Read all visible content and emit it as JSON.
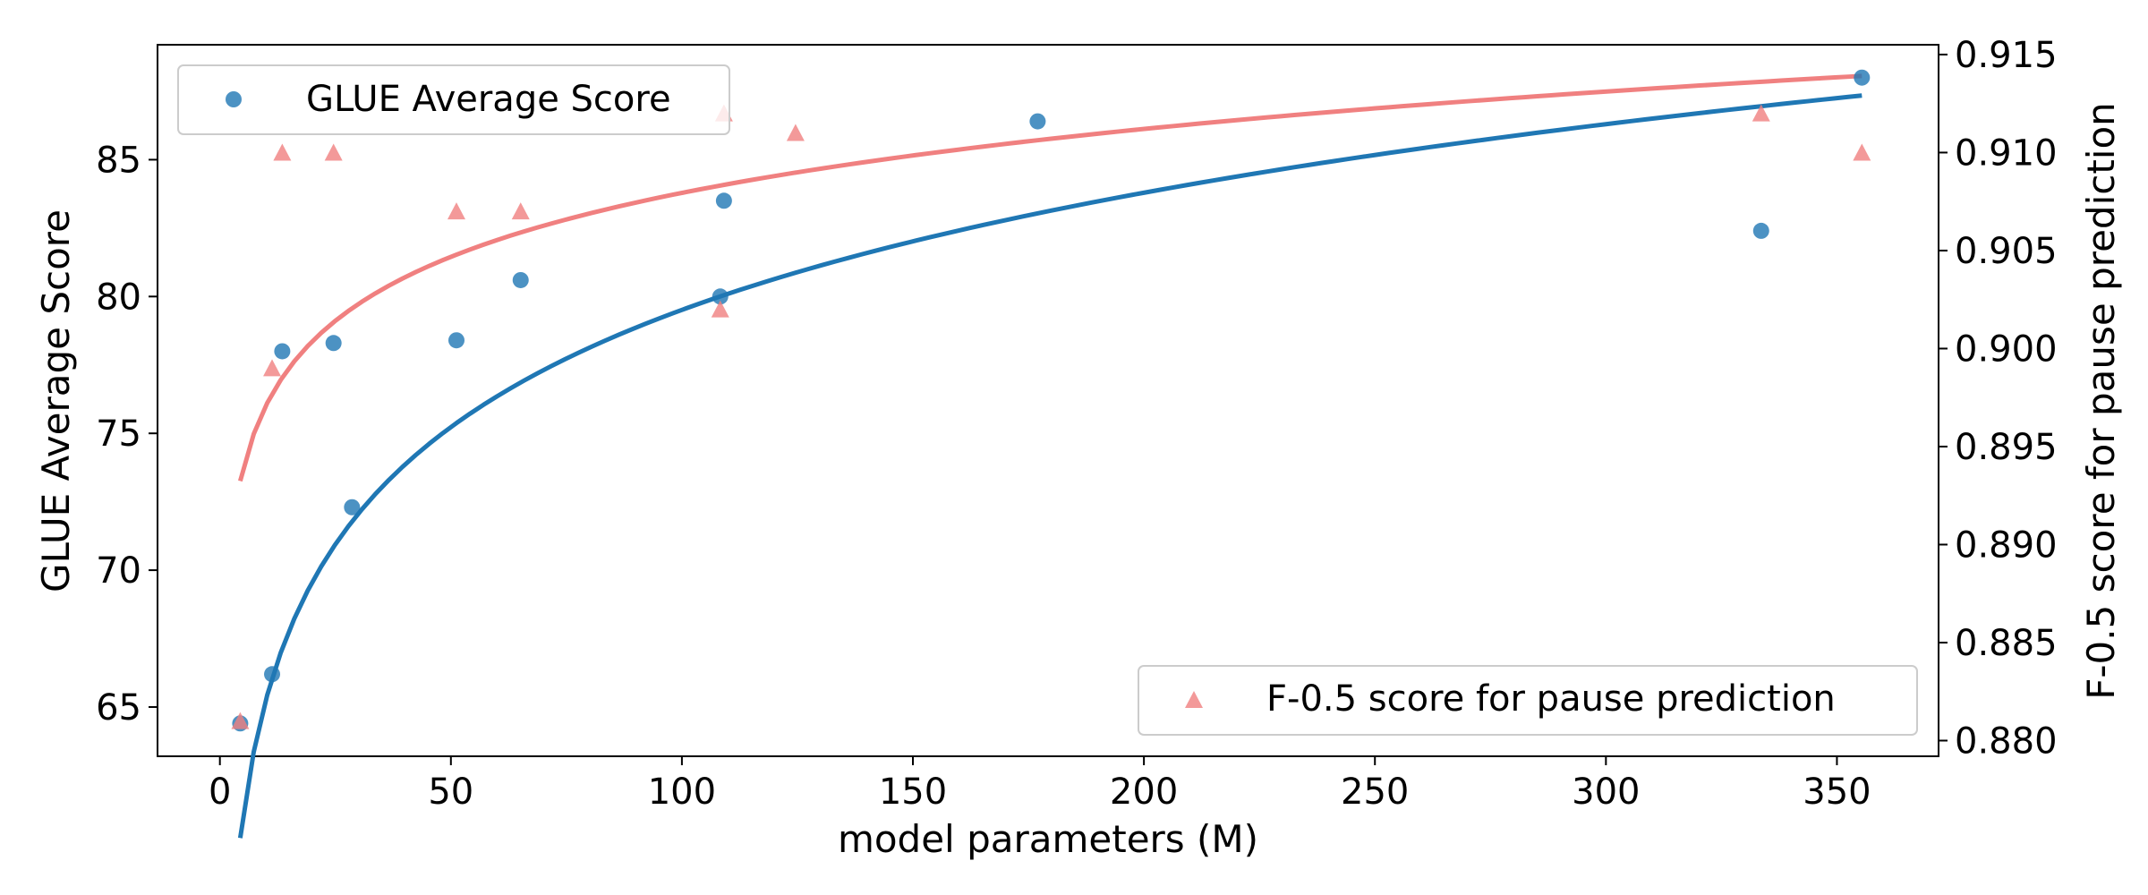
{
  "chart_data": {
    "type": "scatter",
    "xlabel": "model parameters (M)",
    "ylabel_left": "GLUE Average Score",
    "ylabel_right": "F-0.5 score for pause prediction",
    "xlim": [
      -13.5,
      372
    ],
    "ylim_left": [
      63.2,
      89.2
    ],
    "ylim_right": [
      0.8792,
      0.9155
    ],
    "x_ticks": [
      0,
      50,
      100,
      150,
      200,
      250,
      300,
      350
    ],
    "y_left_ticks": [
      65,
      70,
      75,
      80,
      85
    ],
    "y_right_ticks": [
      0.88,
      0.885,
      0.89,
      0.895,
      0.9,
      0.905,
      0.91,
      0.915
    ],
    "y_right_tick_labels": [
      "0.880",
      "0.885",
      "0.890",
      "0.895",
      "0.900",
      "0.905",
      "0.910",
      "0.915"
    ],
    "grid": false,
    "series": [
      {
        "name": "GLUE Average Score",
        "axis": "left",
        "marker": "circle",
        "color": "#1f77b4",
        "legend_position": "upper-left",
        "x": [
          4.4,
          11.3,
          13.5,
          24.6,
          28.6,
          51.2,
          65.1,
          108.3,
          109.1,
          177.0,
          333.6,
          355.4
        ],
        "y": [
          64.4,
          66.2,
          78.0,
          78.3,
          72.3,
          78.4,
          80.6,
          80.0,
          83.5,
          86.4,
          82.4,
          88.0
        ]
      },
      {
        "name": "F-0.5 score for pause prediction",
        "axis": "right",
        "marker": "triangle",
        "color": "#f08080",
        "legend_position": "lower-right",
        "x": [
          4.4,
          11.3,
          13.5,
          24.6,
          51.2,
          65.1,
          108.3,
          109.1,
          124.6,
          333.6,
          355.4
        ],
        "y": [
          0.881,
          0.899,
          0.91,
          0.91,
          0.907,
          0.907,
          0.902,
          0.912,
          0.911,
          0.912,
          0.91
        ]
      }
    ],
    "fits": [
      {
        "series": "GLUE Average Score",
        "axis": "left",
        "model": "a + b*ln(x)",
        "a": 51.06,
        "b": 6.178,
        "x_from": 4.4,
        "x_to": 355.4,
        "color": "#1f77b4"
      },
      {
        "series": "F-0.5 score for pause prediction",
        "axis": "right",
        "model": "a + b*ln(x)",
        "a": 0.88627,
        "b": 0.004706,
        "x_from": 4.4,
        "x_to": 355.4,
        "color": "#f08080"
      }
    ]
  }
}
